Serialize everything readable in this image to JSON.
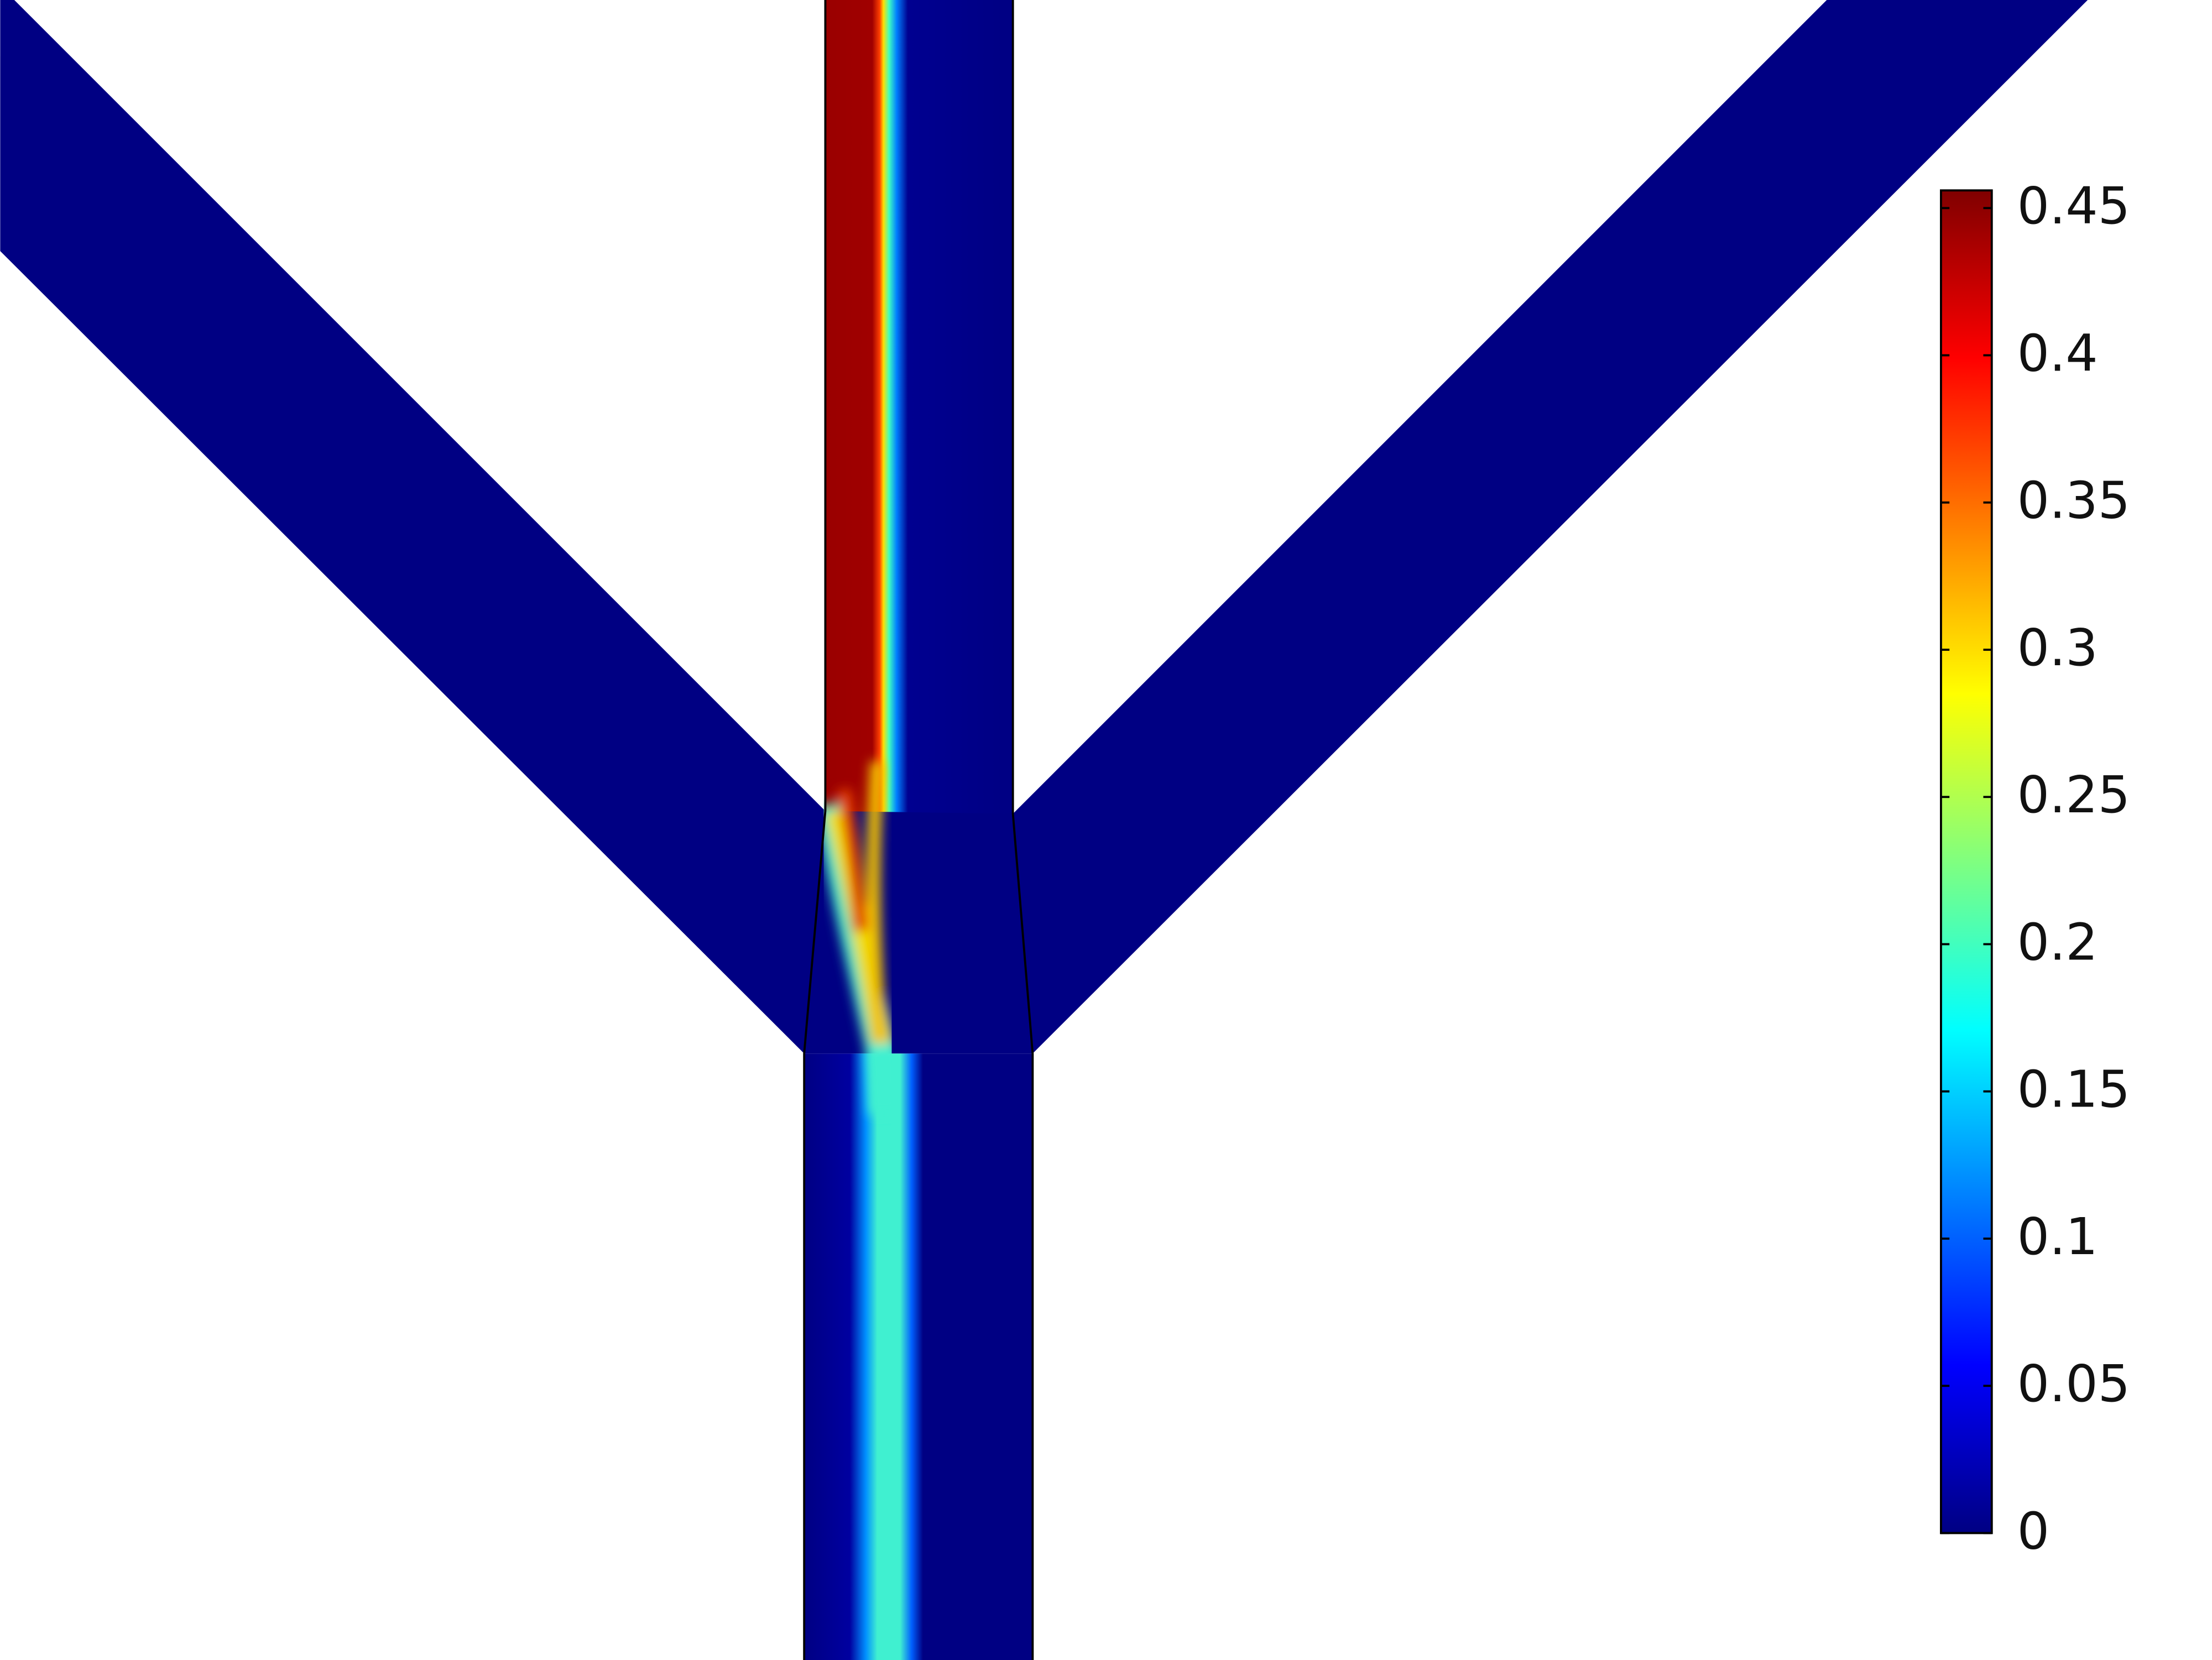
{
  "chart_data": {
    "type": "surface",
    "colormap": "jet",
    "clim": [
      0,
      0.456
    ],
    "colorbar_ticks": [
      0,
      0.05,
      0.1,
      0.15,
      0.2,
      0.25,
      0.3,
      0.35,
      0.4,
      0.45
    ]
  }
}
